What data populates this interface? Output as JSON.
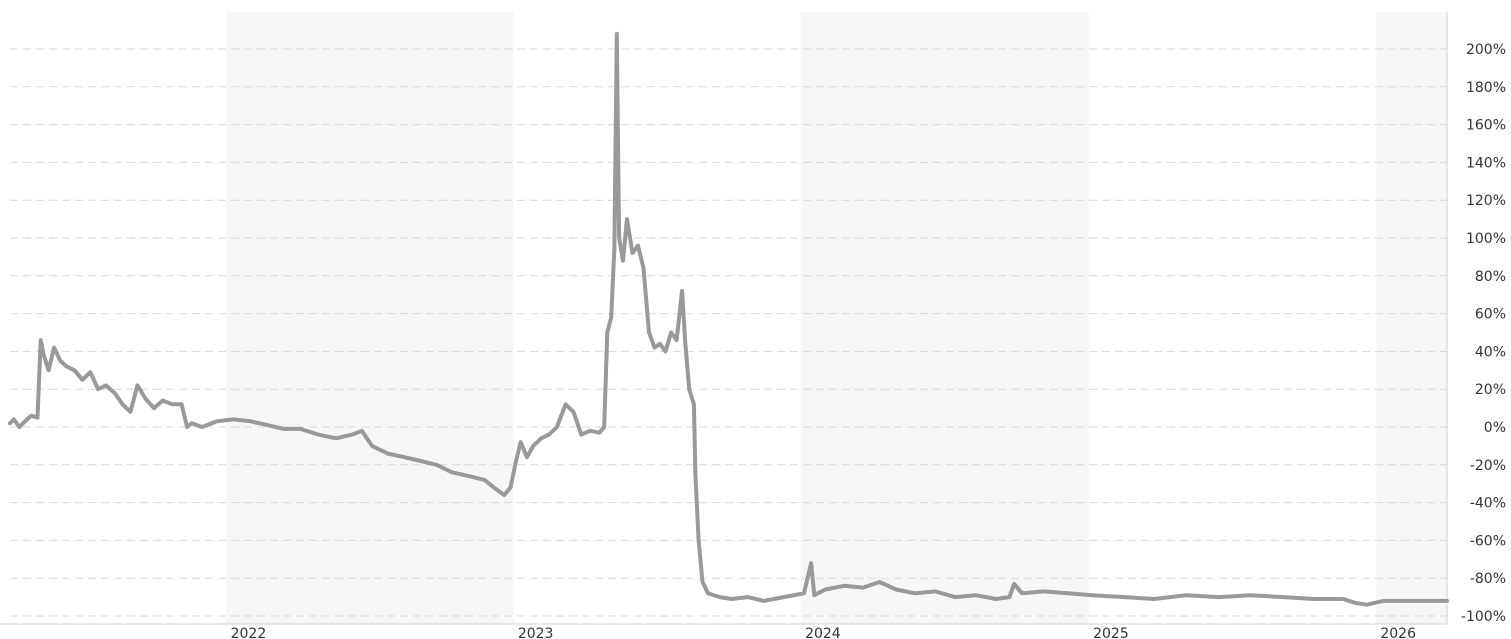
{
  "chart_data": {
    "type": "line",
    "title": "",
    "xlabel": "",
    "ylabel": "",
    "x_range": [
      "2021-04-01",
      "2026-04-01"
    ],
    "ylim": [
      -100,
      210
    ],
    "y_tick_labels": [
      "200%",
      "180%",
      "160%",
      "140%",
      "120%",
      "100%",
      "80%",
      "60%",
      "40%",
      "20%",
      "0%",
      "-20%",
      "-40%",
      "-60%",
      "-80%",
      "-100%"
    ],
    "y_tick_values": [
      200,
      180,
      160,
      140,
      120,
      100,
      80,
      60,
      40,
      20,
      0,
      -20,
      -40,
      -60,
      -80,
      -100
    ],
    "x_tick_labels": [
      "2022",
      "2023",
      "2024",
      "2025",
      "2026"
    ],
    "x_tick_dates": [
      "2022-01-01",
      "2023-01-01",
      "2024-01-01",
      "2025-01-01",
      "2026-01-01"
    ],
    "grid": true,
    "colors": {
      "line": "#999999",
      "band": "#f7f7f7",
      "grid": "#d9d9d9",
      "text": "#333333"
    },
    "series": [
      {
        "points": [
          [
            "2021-04-01",
            2
          ],
          [
            "2021-04-06",
            4
          ],
          [
            "2021-04-13",
            0
          ],
          [
            "2021-04-20",
            3
          ],
          [
            "2021-04-28",
            6
          ],
          [
            "2021-05-06",
            5
          ],
          [
            "2021-05-10",
            46
          ],
          [
            "2021-05-14",
            38
          ],
          [
            "2021-05-20",
            30
          ],
          [
            "2021-05-27",
            42
          ],
          [
            "2021-06-04",
            35
          ],
          [
            "2021-06-12",
            32
          ],
          [
            "2021-06-22",
            30
          ],
          [
            "2021-07-02",
            25
          ],
          [
            "2021-07-12",
            29
          ],
          [
            "2021-07-22",
            20
          ],
          [
            "2021-08-01",
            22
          ],
          [
            "2021-08-12",
            18
          ],
          [
            "2021-08-22",
            12
          ],
          [
            "2021-09-01",
            8
          ],
          [
            "2021-09-10",
            22
          ],
          [
            "2021-09-20",
            15
          ],
          [
            "2021-10-01",
            10
          ],
          [
            "2021-10-12",
            14
          ],
          [
            "2021-10-24",
            12
          ],
          [
            "2021-11-05",
            12
          ],
          [
            "2021-11-12",
            0
          ],
          [
            "2021-11-18",
            2
          ],
          [
            "2021-12-01",
            0
          ],
          [
            "2021-12-20",
            3
          ],
          [
            "2022-01-10",
            4
          ],
          [
            "2022-02-01",
            3
          ],
          [
            "2022-02-22",
            1
          ],
          [
            "2022-03-15",
            -1
          ],
          [
            "2022-04-05",
            -1
          ],
          [
            "2022-04-28",
            -4
          ],
          [
            "2022-05-20",
            -6
          ],
          [
            "2022-06-10",
            -4
          ],
          [
            "2022-06-22",
            -2
          ],
          [
            "2022-07-05",
            -10
          ],
          [
            "2022-07-25",
            -14
          ],
          [
            "2022-08-15",
            -16
          ],
          [
            "2022-09-05",
            -18
          ],
          [
            "2022-09-25",
            -20
          ],
          [
            "2022-10-15",
            -24
          ],
          [
            "2022-11-05",
            -26
          ],
          [
            "2022-11-25",
            -28
          ],
          [
            "2022-12-10",
            -33
          ],
          [
            "2022-12-20",
            -36
          ],
          [
            "2022-12-28",
            -32
          ],
          [
            "2023-01-04",
            -18
          ],
          [
            "2023-01-10",
            -8
          ],
          [
            "2023-01-18",
            -16
          ],
          [
            "2023-01-26",
            -10
          ],
          [
            "2023-02-05",
            -6
          ],
          [
            "2023-02-15",
            -4
          ],
          [
            "2023-02-25",
            0
          ],
          [
            "2023-03-08",
            12
          ],
          [
            "2023-03-18",
            8
          ],
          [
            "2023-03-28",
            -4
          ],
          [
            "2023-04-08",
            -2
          ],
          [
            "2023-04-20",
            -3
          ],
          [
            "2023-04-26",
            0
          ],
          [
            "2023-04-30",
            50
          ],
          [
            "2023-05-05",
            58
          ],
          [
            "2023-05-09",
            95
          ],
          [
            "2023-05-12",
            208
          ],
          [
            "2023-05-15",
            100
          ],
          [
            "2023-05-20",
            88
          ],
          [
            "2023-05-25",
            110
          ],
          [
            "2023-06-01",
            92
          ],
          [
            "2023-06-08",
            96
          ],
          [
            "2023-06-15",
            84
          ],
          [
            "2023-06-22",
            50
          ],
          [
            "2023-06-29",
            42
          ],
          [
            "2023-07-06",
            44
          ],
          [
            "2023-07-13",
            40
          ],
          [
            "2023-07-20",
            50
          ],
          [
            "2023-07-27",
            46
          ],
          [
            "2023-08-03",
            72
          ],
          [
            "2023-08-07",
            45
          ],
          [
            "2023-08-12",
            20
          ],
          [
            "2023-08-18",
            12
          ],
          [
            "2023-08-20",
            -25
          ],
          [
            "2023-08-24",
            -60
          ],
          [
            "2023-08-29",
            -82
          ],
          [
            "2023-09-05",
            -88
          ],
          [
            "2023-09-20",
            -90
          ],
          [
            "2023-10-05",
            -91
          ],
          [
            "2023-10-25",
            -90
          ],
          [
            "2023-11-15",
            -92
          ],
          [
            "2023-12-10",
            -90
          ],
          [
            "2024-01-05",
            -88
          ],
          [
            "2024-01-14",
            -72
          ],
          [
            "2024-01-18",
            -89
          ],
          [
            "2024-02-01",
            -86
          ],
          [
            "2024-02-25",
            -84
          ],
          [
            "2024-03-20",
            -85
          ],
          [
            "2024-04-10",
            -82
          ],
          [
            "2024-05-01",
            -86
          ],
          [
            "2024-05-25",
            -88
          ],
          [
            "2024-06-20",
            -87
          ],
          [
            "2024-07-15",
            -90
          ],
          [
            "2024-08-10",
            -89
          ],
          [
            "2024-09-05",
            -91
          ],
          [
            "2024-09-22",
            -90
          ],
          [
            "2024-09-28",
            -83
          ],
          [
            "2024-10-08",
            -88
          ],
          [
            "2024-11-05",
            -87
          ],
          [
            "2024-12-05",
            -88
          ],
          [
            "2025-01-05",
            -89
          ],
          [
            "2025-02-15",
            -90
          ],
          [
            "2025-03-25",
            -91
          ],
          [
            "2025-05-05",
            -89
          ],
          [
            "2025-06-15",
            -90
          ],
          [
            "2025-07-25",
            -89
          ],
          [
            "2025-09-05",
            -90
          ],
          [
            "2025-10-15",
            -91
          ],
          [
            "2025-11-20",
            -91
          ],
          [
            "2025-12-05",
            -93
          ],
          [
            "2025-12-20",
            -94
          ],
          [
            "2026-01-10",
            -92
          ],
          [
            "2026-02-10",
            -92
          ],
          [
            "2026-03-10",
            -92
          ],
          [
            "2026-04-01",
            -92
          ]
        ]
      }
    ]
  }
}
